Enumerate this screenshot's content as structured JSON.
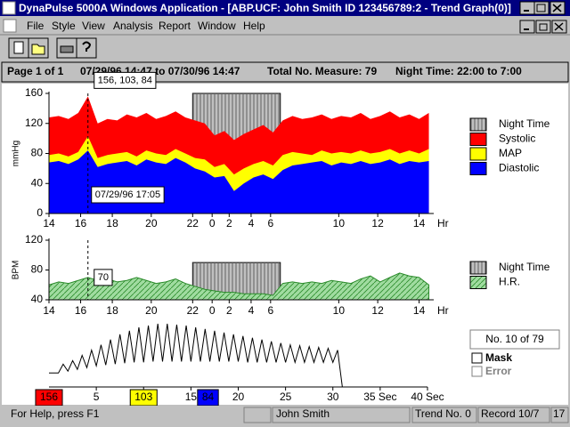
{
  "window": {
    "title": "DynaPulse 5000A Windows Application - [ABP.UCF: John Smith ID 123456789:2 - Trend Graph(0)]"
  },
  "menu": [
    "File",
    "Style",
    "View",
    "Analysis",
    "Report",
    "Window",
    "Help"
  ],
  "info_bar": {
    "page": "Page 1 of 1",
    "range": "07/29/96 14:47 to 07/30/96 14:47",
    "total": "Total No. Measure: 79",
    "night": "Night Time: 22:00 to 7:00"
  },
  "side_panel": {
    "record": "No. 10 of 79",
    "mask": "Mask",
    "error": "Error"
  },
  "status_bar": {
    "help": "For Help, press F1",
    "name": "John Smith",
    "trend": "Trend No. 0",
    "record": "Record 10/7",
    "extra": "17"
  },
  "chart_data": [
    {
      "type": "area",
      "y_label": "mmHg",
      "x_label": "Hr",
      "xlim": [
        1,
        80
      ],
      "ylim": [
        0,
        160
      ],
      "yticks": [
        0,
        40,
        80,
        120,
        160
      ],
      "xticks": [
        {
          "value": 1,
          "label": "14"
        },
        {
          "value": 7.5,
          "label": "16"
        },
        {
          "value": 14,
          "label": "18"
        },
        {
          "value": 22,
          "label": "20"
        },
        {
          "value": 30.5,
          "label": "22"
        },
        {
          "value": 34.5,
          "label": "0"
        },
        {
          "value": 38,
          "label": "2"
        },
        {
          "value": 42.5,
          "label": "4"
        },
        {
          "value": 46.5,
          "label": "6"
        },
        {
          "value": 60.5,
          "label": "10"
        },
        {
          "value": 68.5,
          "label": "12"
        },
        {
          "value": 77,
          "label": "14"
        }
      ],
      "night": {
        "name": "Night Time",
        "start": 30.5,
        "end": 48.5,
        "level": 160,
        "color": "#c0c0c0"
      },
      "cursor": 9,
      "annotations": [
        "156, 103, 84",
        "07/29/96 17:05"
      ],
      "x": [
        1,
        3,
        5,
        7,
        9,
        11,
        13,
        15,
        17,
        19,
        21,
        23,
        25,
        27,
        29,
        31,
        33,
        35,
        37,
        39,
        41,
        43,
        45,
        47,
        49,
        51,
        53,
        55,
        57,
        59,
        61,
        63,
        65,
        67,
        69,
        71,
        73,
        75,
        77,
        79
      ],
      "series": [
        {
          "name": "Systolic",
          "color": "#ff0000",
          "values": [
            128,
            130,
            126,
            134,
            156,
            120,
            126,
            124,
            132,
            128,
            134,
            126,
            130,
            136,
            128,
            124,
            120,
            104,
            110,
            98,
            106,
            112,
            118,
            108,
            124,
            130,
            126,
            128,
            132,
            126,
            130,
            128,
            134,
            126,
            130,
            136,
            128,
            132,
            126,
            134
          ]
        },
        {
          "name": "MAP",
          "color": "#ffff00",
          "values": [
            78,
            80,
            76,
            82,
            103,
            74,
            78,
            80,
            82,
            76,
            84,
            80,
            78,
            86,
            80,
            74,
            72,
            62,
            66,
            52,
            60,
            66,
            70,
            64,
            78,
            82,
            80,
            78,
            84,
            80,
            82,
            80,
            84,
            80,
            82,
            86,
            80,
            84,
            80,
            86
          ]
        },
        {
          "name": "Diastolic",
          "color": "#0000ff",
          "values": [
            68,
            70,
            66,
            72,
            84,
            62,
            66,
            68,
            70,
            64,
            72,
            68,
            66,
            74,
            68,
            60,
            56,
            48,
            50,
            30,
            40,
            48,
            52,
            46,
            58,
            64,
            66,
            68,
            70,
            64,
            68,
            66,
            70,
            66,
            68,
            72,
            66,
            70,
            68,
            70
          ]
        }
      ]
    },
    {
      "type": "area",
      "y_label": "BPM",
      "x_label": "Hr",
      "xlim": [
        1,
        80
      ],
      "ylim": [
        40,
        120
      ],
      "yticks": [
        40,
        80,
        120
      ],
      "xticks": [
        {
          "value": 1,
          "label": "14"
        },
        {
          "value": 7.5,
          "label": "16"
        },
        {
          "value": 14,
          "label": "18"
        },
        {
          "value": 22,
          "label": "20"
        },
        {
          "value": 30.5,
          "label": "22"
        },
        {
          "value": 34.5,
          "label": "0"
        },
        {
          "value": 38,
          "label": "2"
        },
        {
          "value": 42.5,
          "label": "4"
        },
        {
          "value": 46.5,
          "label": "6"
        },
        {
          "value": 60.5,
          "label": "10"
        },
        {
          "value": 68.5,
          "label": "12"
        },
        {
          "value": 77,
          "label": "14"
        }
      ],
      "night": {
        "name": "Night Time",
        "start": 30.5,
        "end": 48.5,
        "level": 90,
        "color": "#c0c0c0"
      },
      "cursor": 9,
      "annotations": [
        "70"
      ],
      "x": [
        1,
        3,
        5,
        7,
        9,
        11,
        13,
        15,
        17,
        19,
        21,
        23,
        25,
        27,
        29,
        31,
        33,
        35,
        37,
        39,
        41,
        43,
        45,
        47,
        49,
        51,
        53,
        55,
        57,
        59,
        61,
        63,
        65,
        67,
        69,
        71,
        73,
        75,
        77,
        79
      ],
      "series": [
        {
          "name": "H.R.",
          "color": "#a0dca0",
          "values": [
            60,
            64,
            62,
            66,
            70,
            66,
            68,
            64,
            66,
            70,
            66,
            62,
            64,
            68,
            62,
            58,
            54,
            52,
            50,
            50,
            48,
            48,
            48,
            46,
            62,
            64,
            62,
            64,
            62,
            66,
            64,
            62,
            68,
            72,
            64,
            70,
            76,
            72,
            70,
            60
          ]
        }
      ]
    },
    {
      "type": "waveform",
      "xlim": [
        0,
        40
      ],
      "ylim": [
        -12,
        64
      ],
      "xticks": [
        5,
        10,
        15,
        20,
        25,
        30,
        {
          "value": 35,
          "label": "35 Sec"
        },
        {
          "value": 40,
          "label": "40 Sec"
        }
      ],
      "markers": [
        {
          "label": "156",
          "x": 0,
          "color": "#ff0000"
        },
        {
          "label": "103",
          "x": 10,
          "color": "#ffff00"
        },
        {
          "label": "84",
          "x": 16.8,
          "color": "#0000ff"
        }
      ],
      "x": [
        0,
        1,
        1.5,
        2,
        2.5,
        3,
        3.5,
        4,
        4.5,
        5,
        5.5,
        6,
        6.5,
        7,
        7.5,
        8,
        8.5,
        9,
        9.5,
        10,
        10.5,
        11,
        11.5,
        12,
        12.5,
        13,
        13.5,
        14,
        14.5,
        15,
        15.5,
        16,
        16.5,
        17,
        17.5,
        18,
        18.5,
        19,
        19.5,
        20,
        20.5,
        21,
        21.5,
        22,
        22.5,
        23,
        23.5,
        24,
        24.5,
        25,
        25.5,
        26,
        26.5,
        27,
        27.5,
        28,
        28.5,
        29,
        29.5,
        30,
        30.5,
        31
      ],
      "values": [
        4,
        4,
        14,
        6,
        18,
        8,
        24,
        10,
        30,
        12,
        36,
        13,
        42,
        14,
        48,
        15,
        52,
        16,
        56,
        16,
        58,
        17,
        60,
        17,
        60,
        17,
        59,
        17,
        58,
        17,
        56,
        17,
        54,
        17,
        52,
        17,
        50,
        17,
        48,
        17,
        46,
        16,
        44,
        16,
        42,
        16,
        40,
        16,
        38,
        16,
        36,
        16,
        35,
        16,
        34,
        16,
        33,
        16,
        32,
        16,
        30,
        -12
      ]
    }
  ]
}
